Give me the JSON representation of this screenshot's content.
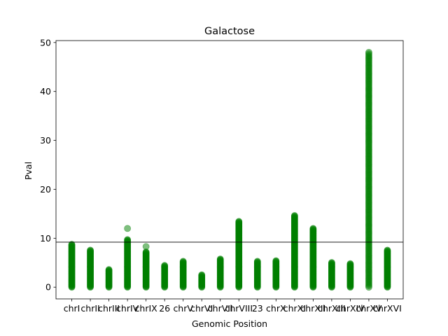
{
  "chart_data": {
    "type": "scatter",
    "title": "Galactose",
    "xlabel": "Genomic Position",
    "ylabel": "Pval",
    "ylim": [
      -2.4,
      50.4
    ],
    "yticks": [
      0,
      10,
      20,
      30,
      40,
      50
    ],
    "categories": [
      "chrI",
      "chrII",
      "chrIII",
      "chrIV",
      "chrIX",
      "26",
      "chrV",
      "chrVI",
      "chrVII",
      "chrVIII",
      "23",
      "chrX",
      "chrXI",
      "chrXII",
      "chrXIII",
      "chrXIV",
      "chrXV",
      "chrXVI"
    ],
    "column_max": [
      8.8,
      7.6,
      3.6,
      9.8,
      7.2,
      4.5,
      5.3,
      2.6,
      5.8,
      13.5,
      5.3,
      5.5,
      14.7,
      12.0,
      5.1,
      4.9,
      48.2,
      7.6
    ],
    "outliers": [
      {
        "category": "chrIV",
        "value": 12.0
      },
      {
        "category": "chrIX",
        "value": 8.3
      }
    ],
    "threshold": 9.2,
    "marker_color": "#008000",
    "threshold_color": "#000000",
    "grid": false,
    "legend": "none"
  }
}
